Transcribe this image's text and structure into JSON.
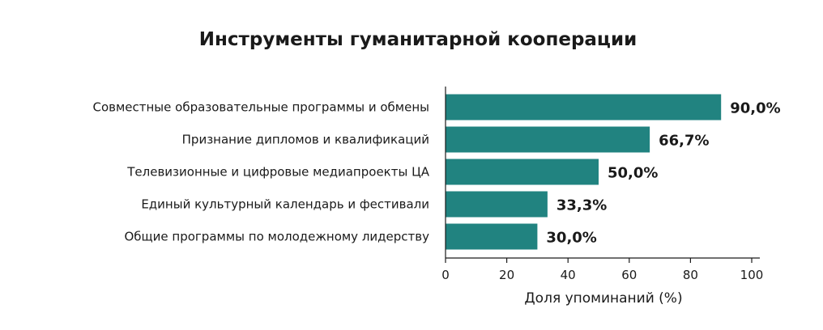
{
  "chart_data": {
    "type": "bar",
    "orientation": "horizontal",
    "title": "Инструменты гуманитарной кооперации",
    "xlabel": "Доля упоминаний (%)",
    "ylabel": "",
    "categories": [
      "Совместные образовательные программы и обмены",
      "Признание дипломов и квалификаций",
      "Телевизионные и цифровые медиапроекты ЦА",
      "Единый культурный календарь и фестивали",
      "Общие программы по молодежному лидерству"
    ],
    "values": [
      90.0,
      66.7,
      50.0,
      33.3,
      30.0
    ],
    "value_labels": [
      "90,0%",
      "66,7%",
      "50,0%",
      "33,3%",
      "30,0%"
    ],
    "xlim": [
      0,
      100
    ],
    "xticks": [
      0,
      20,
      40,
      60,
      80,
      100
    ],
    "grid": false,
    "bar_color": "#218380"
  }
}
